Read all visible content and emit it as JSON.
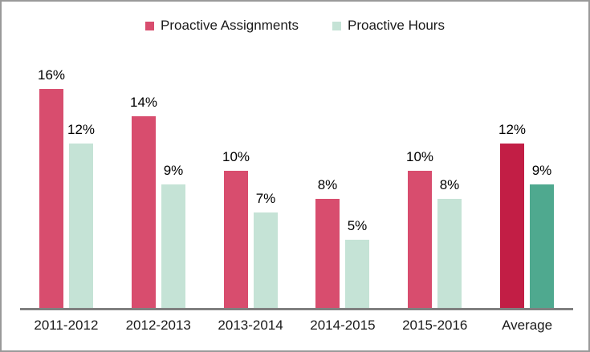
{
  "chart_data": {
    "type": "bar",
    "title": "",
    "categories": [
      "2011-2012",
      "2012-2013",
      "2013-2014",
      "2014-2015",
      "2015-2016",
      "Average"
    ],
    "series": [
      {
        "name": "Proactive Assignments",
        "values": [
          16,
          14,
          10,
          8,
          10,
          12
        ],
        "color": "#D84D6E",
        "highlight_color": "#C21E45"
      },
      {
        "name": "Proactive Hours",
        "values": [
          12,
          9,
          7,
          5,
          8,
          9
        ],
        "color": "#C5E3D6",
        "highlight_color": "#4FA98F"
      }
    ],
    "highlight_category": "Average",
    "value_suffix": "%",
    "data_labels": [
      "16%",
      "14%",
      "10%",
      "8%",
      "10%",
      "12%",
      "12%",
      "9%",
      "7%",
      "5%",
      "8%",
      "9%"
    ],
    "legend_position": "top",
    "xlabel": "",
    "ylabel": "",
    "ylim": [
      0,
      18
    ],
    "grid": false
  },
  "colors": {
    "axis_line": "#808080",
    "chart_border": "#9a9a9a",
    "text": "#1a1a1a",
    "background": "#ffffff"
  }
}
